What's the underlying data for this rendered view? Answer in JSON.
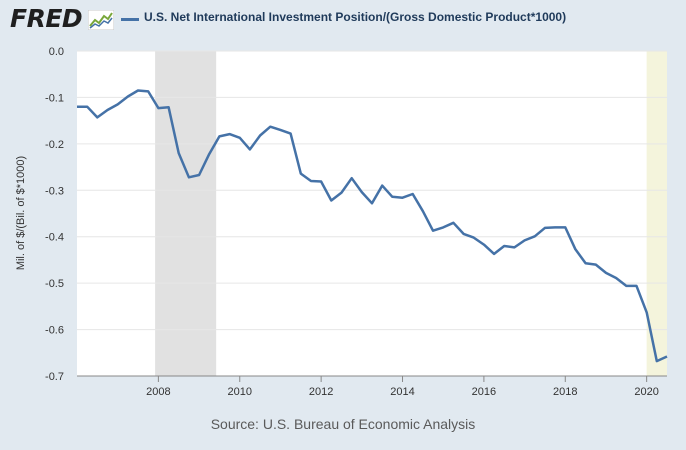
{
  "header": {
    "logo_text": "FRED",
    "legend_label": "U.S. Net International Investment Position/(Gross Domestic Product*1000)"
  },
  "source": "Source: U.S. Bureau of Economic Analysis",
  "chart_data": {
    "type": "line",
    "title": "U.S. Net International Investment Position/(Gross Domestic Product*1000)",
    "ylabel": "Mil. of $/(Bil. of $*1000)",
    "xlabel": "",
    "xlim": [
      2006.0,
      2020.5
    ],
    "ylim": [
      -0.7,
      0.0
    ],
    "y_ticks": [
      0.0,
      -0.1,
      -0.2,
      -0.3,
      -0.4,
      -0.5,
      -0.6,
      -0.7
    ],
    "y_tick_labels": [
      "0.0",
      "-0.1",
      "-0.2",
      "-0.3",
      "-0.4",
      "-0.5",
      "-0.6",
      "-0.7"
    ],
    "x_ticks": [
      2008,
      2010,
      2012,
      2014,
      2016,
      2018,
      2020
    ],
    "x_tick_labels": [
      "2008",
      "2010",
      "2012",
      "2014",
      "2016",
      "2018",
      "2020"
    ],
    "grid": true,
    "line_color": "#4572a7",
    "recession_shading": [
      {
        "start": 2007.92,
        "end": 2009.42,
        "color": "#e1e1e1"
      },
      {
        "start": 2020.0,
        "end": 2020.5,
        "color": "#f4f4dc"
      }
    ],
    "series": [
      {
        "name": "U.S. Net International Investment Position/(Gross Domestic Product*1000)",
        "x": [
          2006.0,
          2006.25,
          2006.5,
          2006.75,
          2007.0,
          2007.25,
          2007.5,
          2007.75,
          2008.0,
          2008.25,
          2008.5,
          2008.75,
          2009.0,
          2009.25,
          2009.5,
          2009.75,
          2010.0,
          2010.25,
          2010.5,
          2010.75,
          2011.0,
          2011.25,
          2011.5,
          2011.75,
          2012.0,
          2012.25,
          2012.5,
          2012.75,
          2013.0,
          2013.25,
          2013.5,
          2013.75,
          2014.0,
          2014.25,
          2014.5,
          2014.75,
          2015.0,
          2015.25,
          2015.5,
          2015.75,
          2016.0,
          2016.25,
          2016.5,
          2016.75,
          2017.0,
          2017.25,
          2017.5,
          2017.75,
          2018.0,
          2018.25,
          2018.5,
          2018.75,
          2019.0,
          2019.25,
          2019.5,
          2019.75,
          2020.0,
          2020.25,
          2020.5
        ],
        "y": [
          -0.12,
          -0.12,
          -0.143,
          -0.127,
          -0.115,
          -0.098,
          -0.085,
          -0.087,
          -0.123,
          -0.121,
          -0.22,
          -0.272,
          -0.267,
          -0.222,
          -0.184,
          -0.179,
          -0.187,
          -0.212,
          -0.182,
          -0.163,
          -0.17,
          -0.178,
          -0.264,
          -0.28,
          -0.281,
          -0.322,
          -0.305,
          -0.274,
          -0.304,
          -0.328,
          -0.29,
          -0.314,
          -0.316,
          -0.308,
          -0.345,
          -0.387,
          -0.38,
          -0.37,
          -0.394,
          -0.402,
          -0.417,
          -0.437,
          -0.42,
          -0.423,
          -0.408,
          -0.399,
          -0.381,
          -0.38,
          -0.38,
          -0.427,
          -0.457,
          -0.46,
          -0.478,
          -0.489,
          -0.506,
          -0.506,
          -0.563,
          -0.668,
          -0.658
        ]
      }
    ]
  }
}
